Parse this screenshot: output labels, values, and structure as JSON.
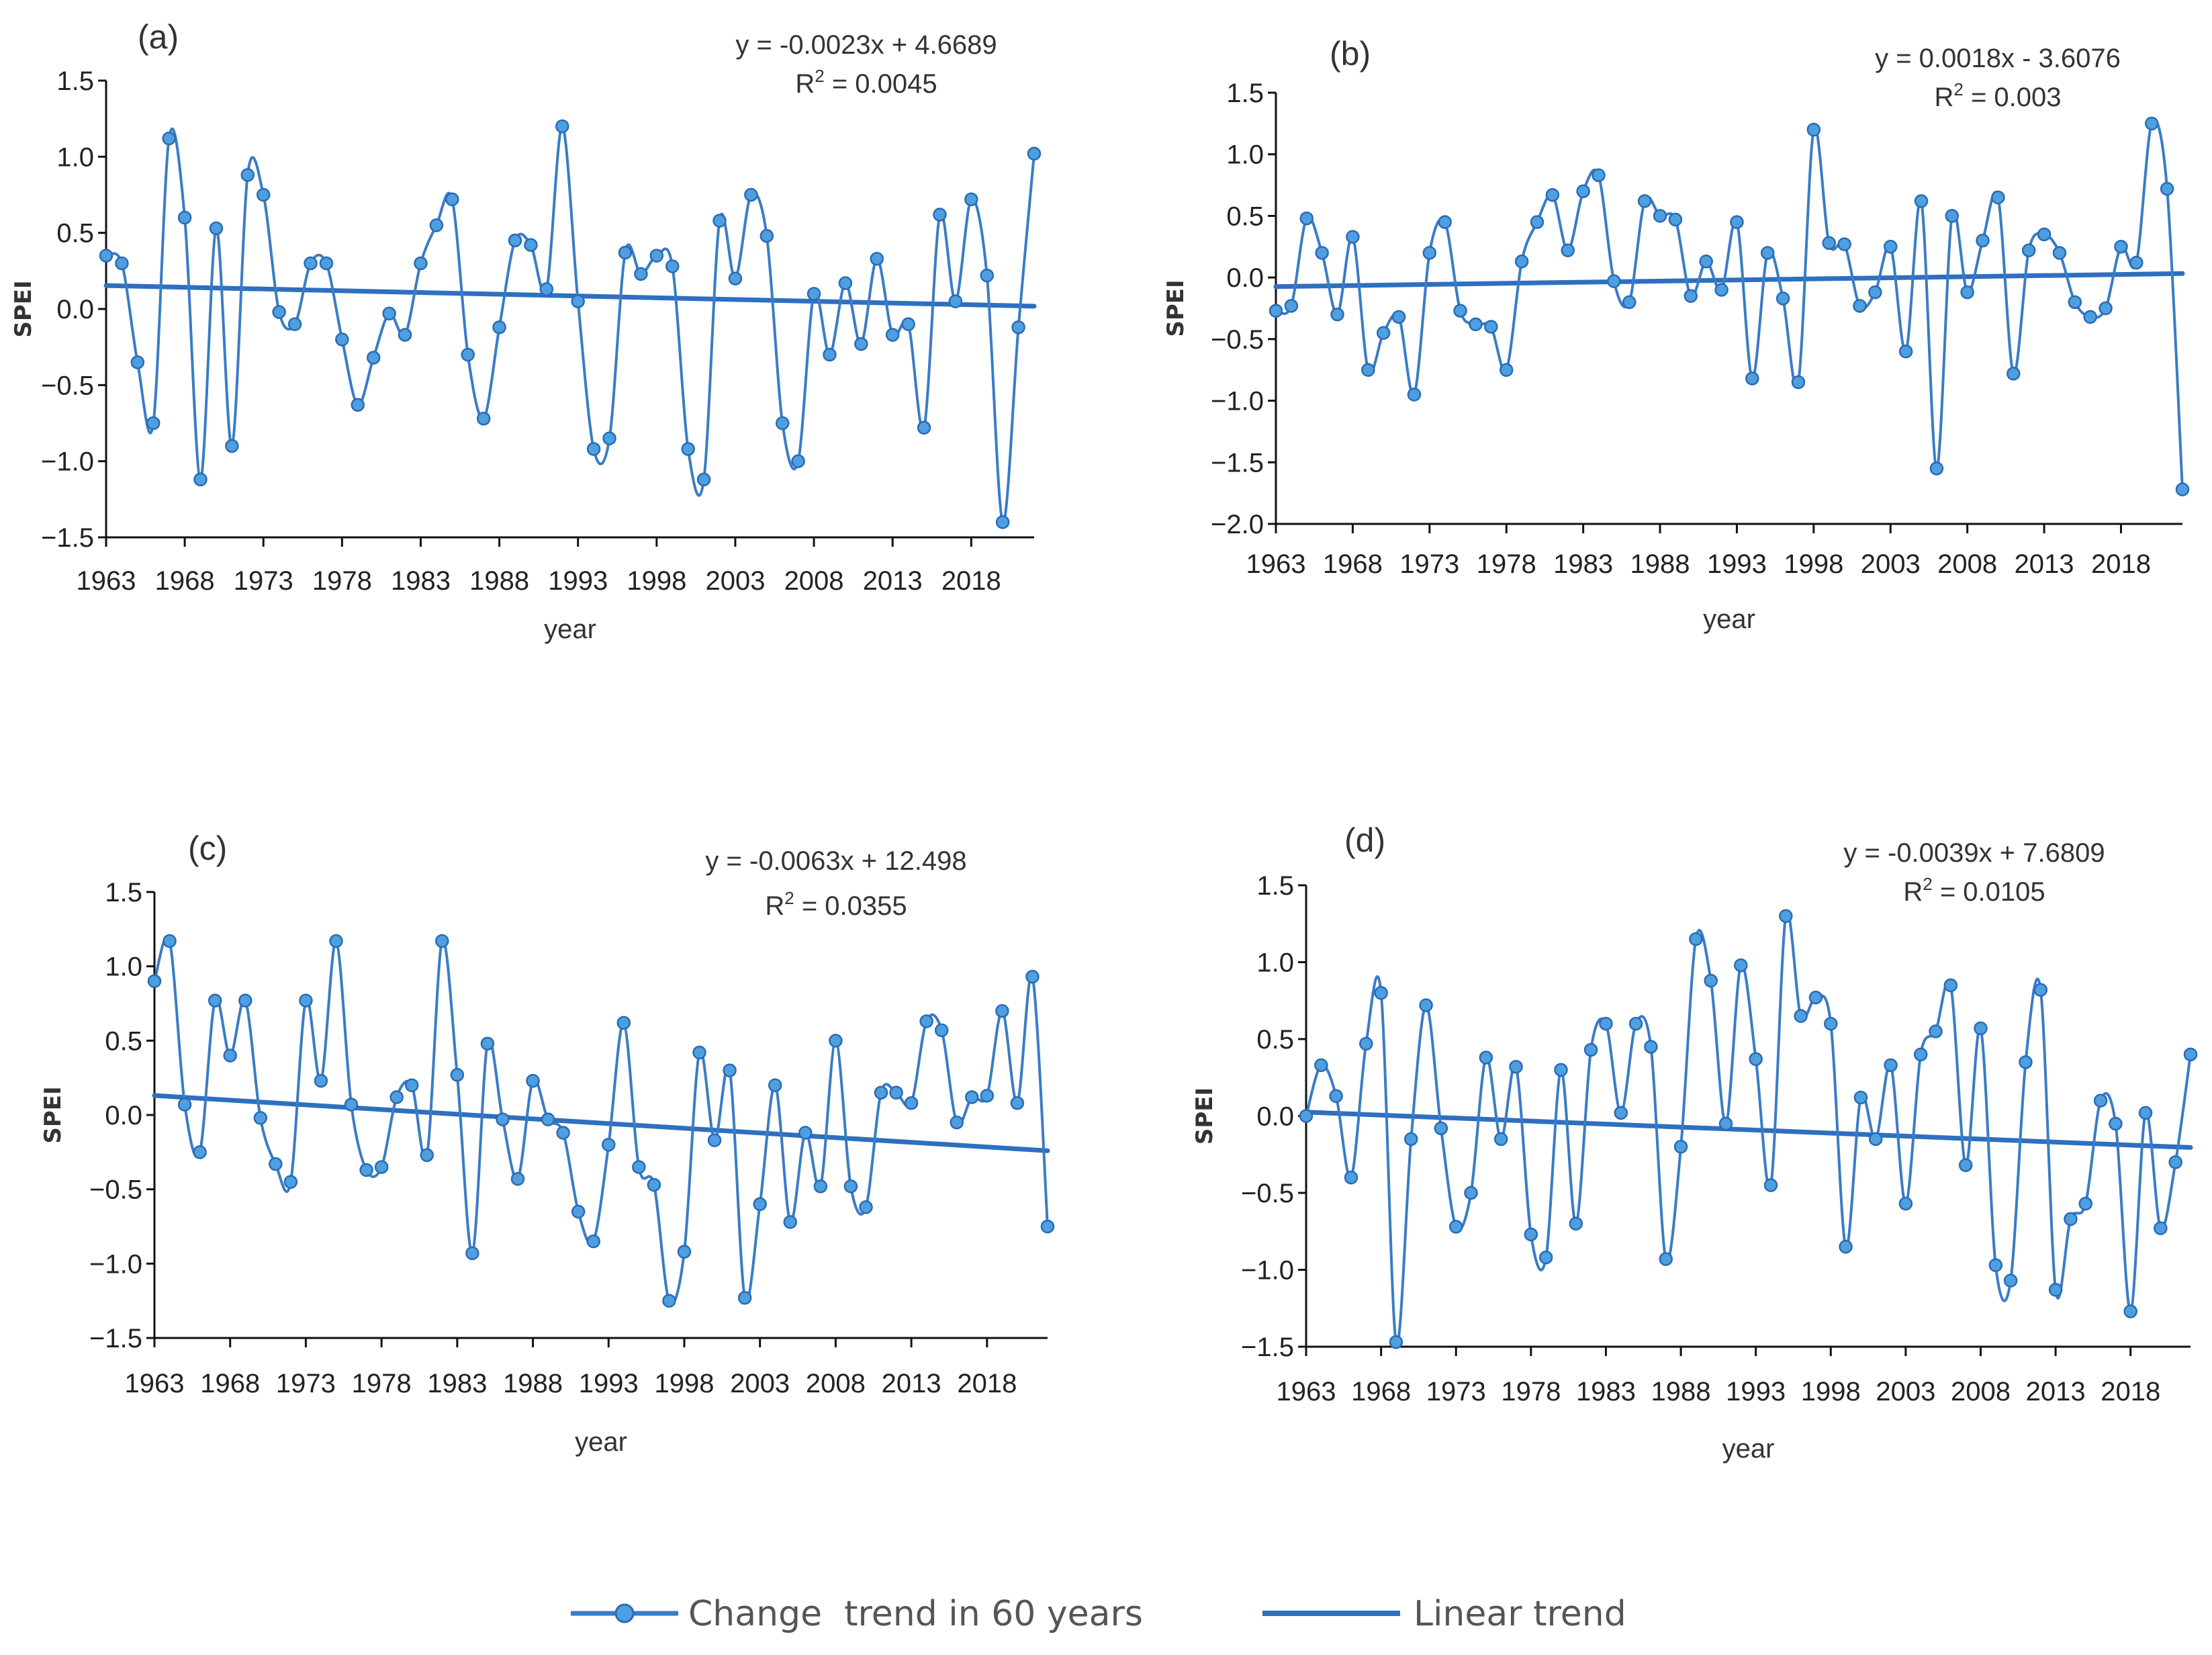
{
  "colors": {
    "series": "#3a7cc5",
    "trend": "#2e6fc0",
    "axis": "#111111",
    "marker_fill": "#4e9fe0",
    "marker_edge": "#2a6bb5"
  },
  "legend": {
    "series_label": "Change  trend in 60 years",
    "trend_label": "Linear trend"
  },
  "chart_data": [
    {
      "type": "line",
      "panel_label": "(a)",
      "equation": "y = -0.0023x + 4.6689",
      "r2_label": "R",
      "r2_sup": "2",
      "r2_value": " = 0.0045",
      "xlabel": "year",
      "ylabel": "SPEI",
      "xlim": [
        1963,
        2022
      ],
      "ylim": [
        -1.5,
        1.5
      ],
      "yticks": [
        -1.5,
        -1.0,
        -0.5,
        0.0,
        0.5,
        1.0,
        1.5
      ],
      "ytick_labels": [
        "−1.5",
        "−1.0",
        "−0.5",
        "0.0",
        "0.5",
        "1.0",
        "1.5"
      ],
      "xticks": [
        1963,
        1968,
        1973,
        1978,
        1983,
        1988,
        1993,
        1998,
        2003,
        2008,
        2013,
        2018
      ],
      "xtick_labels": [
        "1963",
        "1968",
        "1973",
        "1978",
        "1983",
        "1988",
        "1993",
        "1998",
        "2003",
        "2008",
        "2013",
        "2018"
      ],
      "trend": {
        "slope": -0.0023,
        "intercept": 4.6689
      },
      "x_start": 1963,
      "values": [
        0.35,
        0.3,
        -0.35,
        -0.75,
        1.12,
        0.6,
        -1.12,
        0.53,
        -0.9,
        0.88,
        0.75,
        -0.02,
        -0.1,
        0.3,
        0.3,
        -0.2,
        -0.63,
        -0.32,
        -0.03,
        -0.17,
        0.3,
        0.55,
        0.72,
        -0.3,
        -0.72,
        -0.12,
        0.45,
        0.42,
        0.13,
        1.2,
        0.05,
        -0.92,
        -0.85,
        0.37,
        0.23,
        0.35,
        0.28,
        -0.92,
        -1.12,
        0.58,
        0.2,
        0.75,
        0.48,
        -0.75,
        -1.0,
        0.1,
        -0.3,
        0.17,
        -0.23,
        0.33,
        -0.17,
        -0.1,
        -0.78,
        0.62,
        0.05,
        0.72,
        0.22,
        -1.4,
        -0.12,
        1.02
      ]
    },
    {
      "type": "line",
      "panel_label": "(b)",
      "equation": "y = 0.0018x - 3.6076",
      "r2_label": "R",
      "r2_sup": "2",
      "r2_value": " = 0.003",
      "xlabel": "year",
      "ylabel": "SPEI",
      "xlim": [
        1963,
        2022
      ],
      "ylim": [
        -2.0,
        1.5
      ],
      "yticks": [
        -2.0,
        -1.5,
        -1.0,
        -0.5,
        0.0,
        0.5,
        1.0,
        1.5
      ],
      "ytick_labels": [
        "−2.0",
        "−1.5",
        "−1.0",
        "−0.5",
        "0.0",
        "0.5",
        "1.0",
        "1.5"
      ],
      "xticks": [
        1963,
        1968,
        1973,
        1978,
        1983,
        1988,
        1993,
        1998,
        2003,
        2008,
        2013,
        2018
      ],
      "xtick_labels": [
        "1963",
        "1968",
        "1973",
        "1978",
        "1983",
        "1988",
        "1993",
        "1998",
        "2003",
        "2008",
        "2013",
        "2018"
      ],
      "trend": {
        "slope": 0.0018,
        "intercept": -3.6076
      },
      "x_start": 1963,
      "values": [
        -0.27,
        -0.23,
        0.48,
        0.2,
        -0.3,
        0.33,
        -0.75,
        -0.45,
        -0.32,
        -0.95,
        0.2,
        0.45,
        -0.27,
        -0.38,
        -0.4,
        -0.75,
        0.13,
        0.45,
        0.67,
        0.22,
        0.7,
        0.83,
        -0.03,
        -0.2,
        0.62,
        0.5,
        0.47,
        -0.15,
        0.13,
        -0.1,
        0.45,
        -0.82,
        0.2,
        -0.17,
        -0.85,
        1.2,
        0.28,
        0.27,
        -0.23,
        -0.12,
        0.25,
        -0.6,
        0.62,
        -1.55,
        0.5,
        -0.12,
        0.3,
        0.65,
        -0.78,
        0.22,
        0.35,
        0.2,
        -0.2,
        -0.32,
        -0.25,
        0.25,
        0.12,
        1.25,
        0.72,
        -1.72
      ]
    },
    {
      "type": "line",
      "panel_label": "(c)",
      "equation": "y = -0.0063x + 12.498",
      "r2_label": "R",
      "r2_sup": "2",
      "r2_value": " = 0.0355",
      "xlabel": "year",
      "ylabel": "SPEI",
      "xlim": [
        1963,
        2022
      ],
      "ylim": [
        -1.5,
        1.5
      ],
      "yticks": [
        -1.5,
        -1.0,
        -0.5,
        0.0,
        0.5,
        1.0,
        1.5
      ],
      "ytick_labels": [
        "−1.5",
        "−1.0",
        "−0.5",
        "0.0",
        "0.5",
        "1.0",
        "1.5"
      ],
      "xticks": [
        1963,
        1968,
        1973,
        1978,
        1983,
        1988,
        1993,
        1998,
        2003,
        2008,
        2013,
        2018
      ],
      "xtick_labels": [
        "1963",
        "1968",
        "1973",
        "1978",
        "1983",
        "1988",
        "1993",
        "1998",
        "2003",
        "2008",
        "2013",
        "2018"
      ],
      "trend": {
        "slope": -0.0063,
        "intercept": 12.498
      },
      "x_start": 1963,
      "values": [
        0.9,
        1.17,
        0.07,
        -0.25,
        0.77,
        0.4,
        0.77,
        -0.02,
        -0.33,
        -0.45,
        0.77,
        0.23,
        1.17,
        0.07,
        -0.37,
        -0.35,
        0.12,
        0.2,
        -0.27,
        1.17,
        0.27,
        -0.93,
        0.48,
        -0.03,
        -0.43,
        0.23,
        -0.03,
        -0.12,
        -0.65,
        -0.85,
        -0.2,
        0.62,
        -0.35,
        -0.47,
        -1.25,
        -0.92,
        0.42,
        -0.17,
        0.3,
        -1.23,
        -0.6,
        0.2,
        -0.72,
        -0.12,
        -0.48,
        0.5,
        -0.48,
        -0.62,
        0.15,
        0.15,
        0.08,
        0.63,
        0.57,
        -0.05,
        0.12,
        0.13,
        0.7,
        0.08,
        0.93,
        -0.75
      ]
    },
    {
      "type": "line",
      "panel_label": "(d)",
      "equation": "y = -0.0039x + 7.6809",
      "r2_label": "R",
      "r2_sup": "2",
      "r2_value": " = 0.0105",
      "xlabel": "year",
      "ylabel": "SPEI",
      "xlim": [
        1963,
        2022
      ],
      "ylim": [
        -1.5,
        1.5
      ],
      "yticks": [
        -1.5,
        -1.0,
        -0.5,
        0.0,
        0.5,
        1.0,
        1.5
      ],
      "ytick_labels": [
        "−1.5",
        "−1.0",
        "−0.5",
        "0.0",
        "0.5",
        "1.0",
        "1.5"
      ],
      "xticks": [
        1963,
        1968,
        1973,
        1978,
        1983,
        1988,
        1993,
        1998,
        2003,
        2008,
        2013,
        2018
      ],
      "xtick_labels": [
        "1963",
        "1968",
        "1973",
        "1978",
        "1983",
        "1988",
        "1993",
        "1998",
        "2003",
        "2008",
        "2013",
        "2018"
      ],
      "trend": {
        "slope": -0.0039,
        "intercept": 7.6809
      },
      "x_start": 1963,
      "values": [
        0.0,
        0.33,
        0.13,
        -0.4,
        0.47,
        0.8,
        -1.47,
        -0.15,
        0.72,
        -0.08,
        -0.72,
        -0.5,
        0.38,
        -0.15,
        0.32,
        -0.77,
        -0.92,
        0.3,
        -0.7,
        0.43,
        0.6,
        0.02,
        0.6,
        0.45,
        -0.93,
        -0.2,
        1.15,
        0.88,
        -0.05,
        0.98,
        0.37,
        -0.45,
        1.3,
        0.65,
        0.77,
        0.6,
        -0.85,
        0.12,
        -0.15,
        0.33,
        -0.57,
        0.4,
        0.55,
        0.85,
        -0.32,
        0.57,
        -0.97,
        -1.07,
        0.35,
        0.82,
        -1.13,
        -0.67,
        -0.57,
        0.1,
        -0.05,
        -1.27,
        0.02,
        -0.73,
        -0.3,
        0.4
      ]
    }
  ]
}
